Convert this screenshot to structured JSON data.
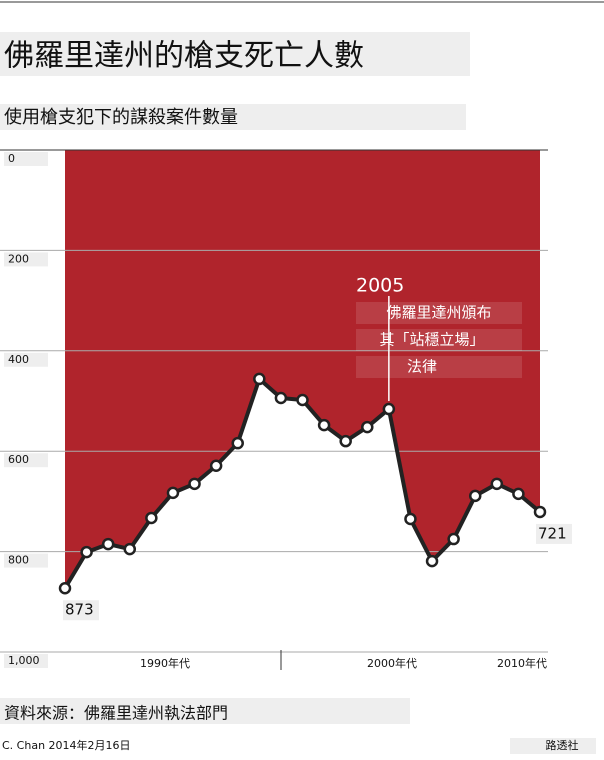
{
  "chart_data": {
    "type": "line",
    "title": "佛羅里達州的槍支死亡人數",
    "subtitle": "使用槍支犯下的謀殺案件數量",
    "categories": [
      null,
      null,
      null,
      null,
      null,
      null,
      null,
      null,
      null,
      null,
      null,
      null,
      null,
      null,
      null,
      null,
      null,
      null,
      null,
      null,
      null,
      null,
      null
    ],
    "decade_labels": [
      "1990年代",
      "2000年代",
      "2010年代"
    ],
    "series": [
      {
        "name": "謀殺案件",
        "color": "#222222",
        "area_color": "#b0242c",
        "values": [
          873,
          801,
          785,
          795,
          733,
          683,
          665,
          629,
          584,
          456,
          494,
          498,
          548,
          580,
          552,
          516,
          735,
          819,
          775,
          689,
          665,
          685,
          721
        ]
      }
    ],
    "value_labels": {
      "0": "873",
      "22": "721"
    },
    "ylim": [
      0,
      1000
    ],
    "y_inverted": true,
    "yticks": [
      0,
      200,
      400,
      600,
      800,
      {
        "value": 1000,
        "label": "1,000"
      }
    ],
    "grid": true,
    "annotation": {
      "year": "2005",
      "lines": [
        "佛羅里達州頒布",
        "其「站穩立場」",
        "法律"
      ],
      "index": 15
    },
    "source": "資料來源：佛羅里達州執法部門",
    "credit": "C. Chan 2014年2月16日",
    "publisher": "路透社"
  }
}
